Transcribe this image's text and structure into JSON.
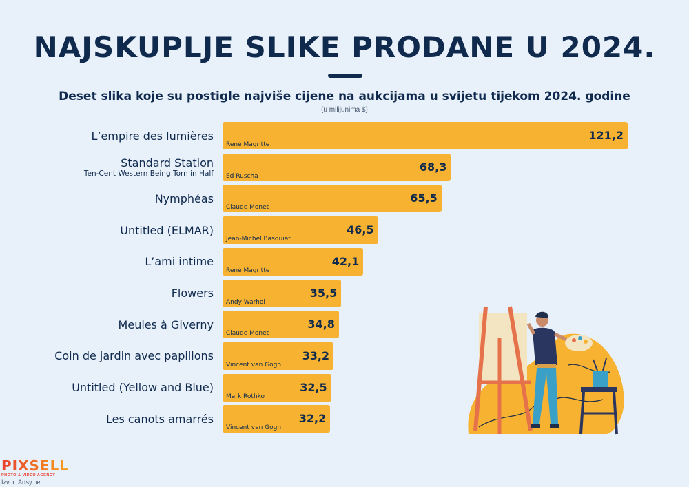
{
  "title": "NAJSKUPLJE SLIKE PRODANE U 2024.",
  "subtitle": "Deset slika koje su postigle najviše cijene na aukcijama u svijetu tijekom 2024. godine",
  "unit_note": "(u milijunima $)",
  "logo": {
    "brand": "PIXSELL",
    "tagline": "PHOTO & VIDEO AGENCY"
  },
  "source": "Izvor: Artsy.net",
  "colors": {
    "bar": "#f6b230",
    "text": "#0f2a4d",
    "background": "#e8f0fa"
  },
  "chart_data": {
    "type": "bar",
    "orientation": "horizontal",
    "title": "NAJSKUPLJE SLIKE PRODANE U 2024.",
    "subtitle": "Deset slika koje su postigle najviše cijene na aukcijama u svijetu tijekom 2024. godine",
    "unit": "(u milijunima $)",
    "xlim": [
      0,
      121.2
    ],
    "categories": [
      "L’empire des lumières",
      "Standard Station",
      "Nymphéas",
      "Untitled (ELMAR)",
      "L’ami intime",
      "Flowers",
      "Meules à Giverny",
      "Coin de jardin avec papillons",
      "Untitled (Yellow and Blue)",
      "Les canots amarrés"
    ],
    "subtitles": [
      "",
      "Ten-Cent Western Being Torn in Half",
      "",
      "",
      "",
      "",
      "",
      "",
      "",
      ""
    ],
    "artists": [
      "René Magritte",
      "Ed Ruscha",
      "Claude Monet",
      "Jean-Michel Basquiat",
      "René Magritte",
      "Andy Warhol",
      "Claude Monet",
      "Vincent van Gogh",
      "Mark Rothko",
      "Vincent van Gogh"
    ],
    "values": [
      121.2,
      68.3,
      65.5,
      46.5,
      42.1,
      35.5,
      34.8,
      33.2,
      32.5,
      32.2
    ],
    "value_labels": [
      "121,2",
      "68,3",
      "65,5",
      "46,5",
      "42,1",
      "35,5",
      "34,8",
      "33,2",
      "32,5",
      "32,2"
    ]
  }
}
